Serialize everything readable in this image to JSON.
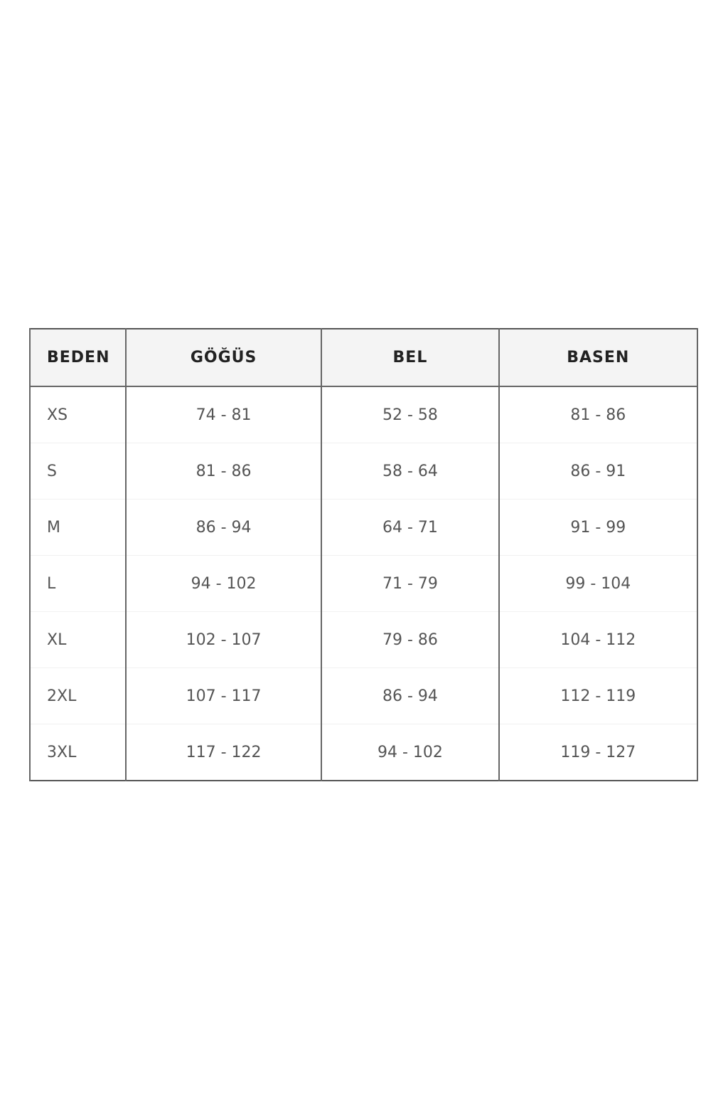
{
  "size_chart": {
    "headers": [
      "BEDEN",
      "GÖĞÜS",
      "BEL",
      "BASEN"
    ],
    "rows": [
      [
        "XS",
        "74 - 81",
        "52 - 58",
        "81 - 86"
      ],
      [
        "S",
        "81 - 86",
        "58 - 64",
        "86 - 91"
      ],
      [
        "M",
        "86 - 94",
        "64 - 71",
        "91 - 99"
      ],
      [
        "L",
        "94 - 102",
        "71 - 79",
        "99 - 104"
      ],
      [
        "XL",
        "102 - 107",
        "79 - 86",
        "104 - 112"
      ],
      [
        "2XL",
        "107 - 117",
        "86 - 94",
        "112 - 119"
      ],
      [
        "3XL",
        "117 - 122",
        "94 - 102",
        "119 - 127"
      ]
    ]
  }
}
